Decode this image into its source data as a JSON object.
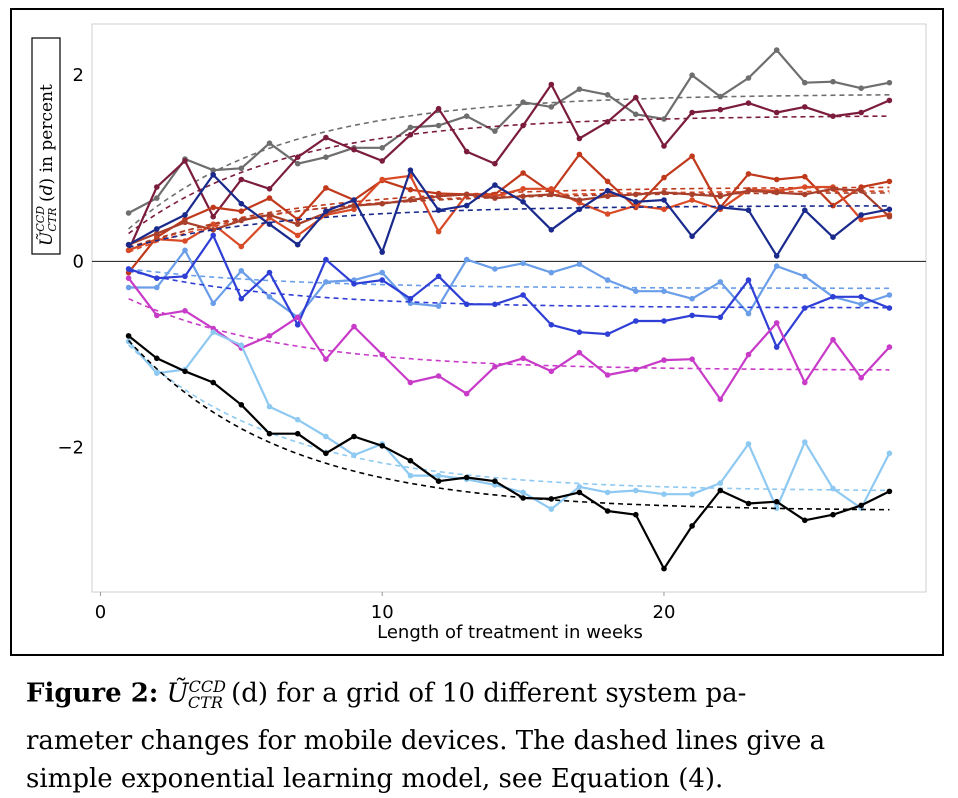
{
  "chart_data": {
    "type": "line",
    "xlabel": "Length of treatment in weeks",
    "ylabel": "Ũ_CTR^CCD (d) in percent",
    "xlim": [
      -0.3,
      29.3
    ],
    "ylim": [
      -3.55,
      2.55
    ],
    "xticks": [
      0,
      10,
      20
    ],
    "yticks": [
      -2,
      0,
      2
    ],
    "ytick_labels": [
      "−2",
      "0",
      "2"
    ],
    "grid": false,
    "legend": "none",
    "x": [
      1,
      2,
      3,
      4,
      5,
      6,
      7,
      8,
      9,
      10,
      11,
      12,
      13,
      14,
      15,
      16,
      17,
      18,
      19,
      20,
      21,
      22,
      23,
      24,
      25,
      26,
      27,
      28
    ],
    "series": [
      {
        "color": "#6e6e6e",
        "fit_final": 1.8,
        "fit_start": 0.35,
        "values": [
          0.52,
          0.68,
          1.1,
          0.98,
          1.0,
          1.27,
          1.05,
          1.12,
          1.22,
          1.22,
          1.44,
          1.46,
          1.56,
          1.4,
          1.71,
          1.66,
          1.85,
          1.79,
          1.58,
          1.53,
          2.0,
          1.77,
          1.97,
          2.27,
          1.92,
          1.93,
          1.86,
          1.92
        ]
      },
      {
        "color": "#7b1c3c",
        "fit_final": 1.57,
        "fit_start": 0.3,
        "values": [
          0.12,
          0.8,
          1.08,
          0.48,
          0.88,
          0.78,
          1.12,
          1.33,
          1.2,
          1.08,
          1.36,
          1.64,
          1.18,
          1.05,
          1.46,
          1.9,
          1.32,
          1.5,
          1.76,
          1.24,
          1.6,
          1.63,
          1.7,
          1.6,
          1.66,
          1.56,
          1.6,
          1.73
        ]
      },
      {
        "color": "#c0391b",
        "fit_final": 0.8,
        "fit_start": 0.12,
        "values": [
          -0.12,
          0.26,
          0.45,
          0.58,
          0.54,
          0.68,
          0.45,
          0.79,
          0.66,
          0.87,
          0.77,
          0.73,
          0.72,
          0.72,
          0.95,
          0.74,
          1.15,
          0.86,
          0.58,
          0.9,
          1.13,
          0.58,
          0.94,
          0.88,
          0.91,
          0.6,
          0.8,
          0.86
        ]
      },
      {
        "color": "#d94a26",
        "fit_final": 0.76,
        "fit_start": 0.1,
        "values": [
          0.12,
          0.24,
          0.22,
          0.4,
          0.16,
          0.47,
          0.28,
          0.5,
          0.56,
          0.88,
          0.92,
          0.32,
          0.72,
          0.7,
          0.78,
          0.78,
          0.63,
          0.51,
          0.6,
          0.56,
          0.66,
          0.56,
          0.77,
          0.76,
          0.8,
          0.8,
          0.45,
          0.5
        ]
      },
      {
        "color": "#a8402c",
        "fit_final": 0.74,
        "fit_start": 0.15,
        "values": [
          0.18,
          0.3,
          0.42,
          0.34,
          0.44,
          0.5,
          0.4,
          0.52,
          0.6,
          0.62,
          0.66,
          0.7,
          0.72,
          0.68,
          0.7,
          0.72,
          0.66,
          0.7,
          0.72,
          0.74,
          0.72,
          0.7,
          0.76,
          0.74,
          0.72,
          0.78,
          0.76,
          0.48
        ]
      },
      {
        "color": "#1a2a8c",
        "fit_final": 0.6,
        "fit_start": 0.15,
        "values": [
          0.18,
          0.35,
          0.5,
          0.93,
          0.62,
          0.4,
          0.18,
          0.54,
          0.66,
          0.1,
          0.98,
          0.55,
          0.6,
          0.82,
          0.64,
          0.34,
          0.56,
          0.76,
          0.64,
          0.66,
          0.27,
          0.58,
          0.55,
          0.06,
          0.55,
          0.26,
          0.5,
          0.56
        ]
      },
      {
        "color": "#6a9ee8",
        "fit_final": -0.29,
        "fit_start": -0.08,
        "values": [
          -0.28,
          -0.28,
          0.12,
          -0.45,
          -0.1,
          -0.38,
          -0.6,
          -0.22,
          -0.2,
          -0.12,
          -0.45,
          -0.48,
          0.02,
          -0.08,
          -0.02,
          -0.12,
          -0.03,
          -0.2,
          -0.32,
          -0.32,
          -0.4,
          -0.22,
          -0.56,
          -0.05,
          -0.16,
          -0.38,
          -0.46,
          -0.36
        ]
      },
      {
        "color": "#2f3fd6",
        "fit_final": -0.5,
        "fit_start": -0.1,
        "values": [
          -0.08,
          -0.18,
          -0.16,
          0.28,
          -0.4,
          -0.12,
          -0.68,
          0.02,
          -0.24,
          -0.2,
          -0.4,
          -0.16,
          -0.46,
          -0.46,
          -0.36,
          -0.68,
          -0.76,
          -0.78,
          -0.64,
          -0.64,
          -0.58,
          -0.6,
          -0.2,
          -0.92,
          -0.5,
          -0.38,
          -0.38,
          -0.5
        ]
      },
      {
        "color": "#c83bc8",
        "fit_final": -1.17,
        "fit_start": -0.4,
        "values": [
          -0.18,
          -0.58,
          -0.53,
          -0.72,
          -0.93,
          -0.8,
          -0.6,
          -1.05,
          -0.7,
          -1.0,
          -1.3,
          -1.23,
          -1.42,
          -1.13,
          -1.04,
          -1.18,
          -0.98,
          -1.22,
          -1.16,
          -1.06,
          -1.05,
          -1.48,
          -1.0,
          -0.66,
          -1.3,
          -0.84,
          -1.25,
          -0.92
        ]
      },
      {
        "color": "#8ec9f2",
        "fit_final": -2.47,
        "fit_start": -0.9,
        "values": [
          -0.86,
          -1.2,
          -1.16,
          -0.76,
          -0.9,
          -1.56,
          -1.7,
          -1.88,
          -2.08,
          -1.96,
          -2.3,
          -2.3,
          -2.34,
          -2.4,
          -2.48,
          -2.66,
          -2.42,
          -2.48,
          -2.46,
          -2.5,
          -2.5,
          -2.38,
          -1.96,
          -2.65,
          -1.94,
          -2.44,
          -2.65,
          -2.06
        ]
      },
      {
        "color": "#000000",
        "fit_final": -2.68,
        "fit_start": -0.85,
        "values": [
          -0.8,
          -1.04,
          -1.18,
          -1.3,
          -1.54,
          -1.85,
          -1.85,
          -2.06,
          -1.88,
          -1.98,
          -2.14,
          -2.36,
          -2.32,
          -2.36,
          -2.54,
          -2.55,
          -2.48,
          -2.68,
          -2.72,
          -3.3,
          -2.84,
          -2.46,
          -2.6,
          -2.58,
          -2.78,
          -2.72,
          -2.62,
          -2.47
        ]
      }
    ]
  },
  "caption": {
    "label": "Figure 2:",
    "line1_a": "Ũ",
    "line1_sup": "CCD",
    "line1_sub": "CTR",
    "line1_b": "(d) for a grid of 10 different system pa-",
    "line2": "rameter changes for mobile devices. The dashed lines give a",
    "line3": "simple exponential learning model, see Equation (4)."
  }
}
